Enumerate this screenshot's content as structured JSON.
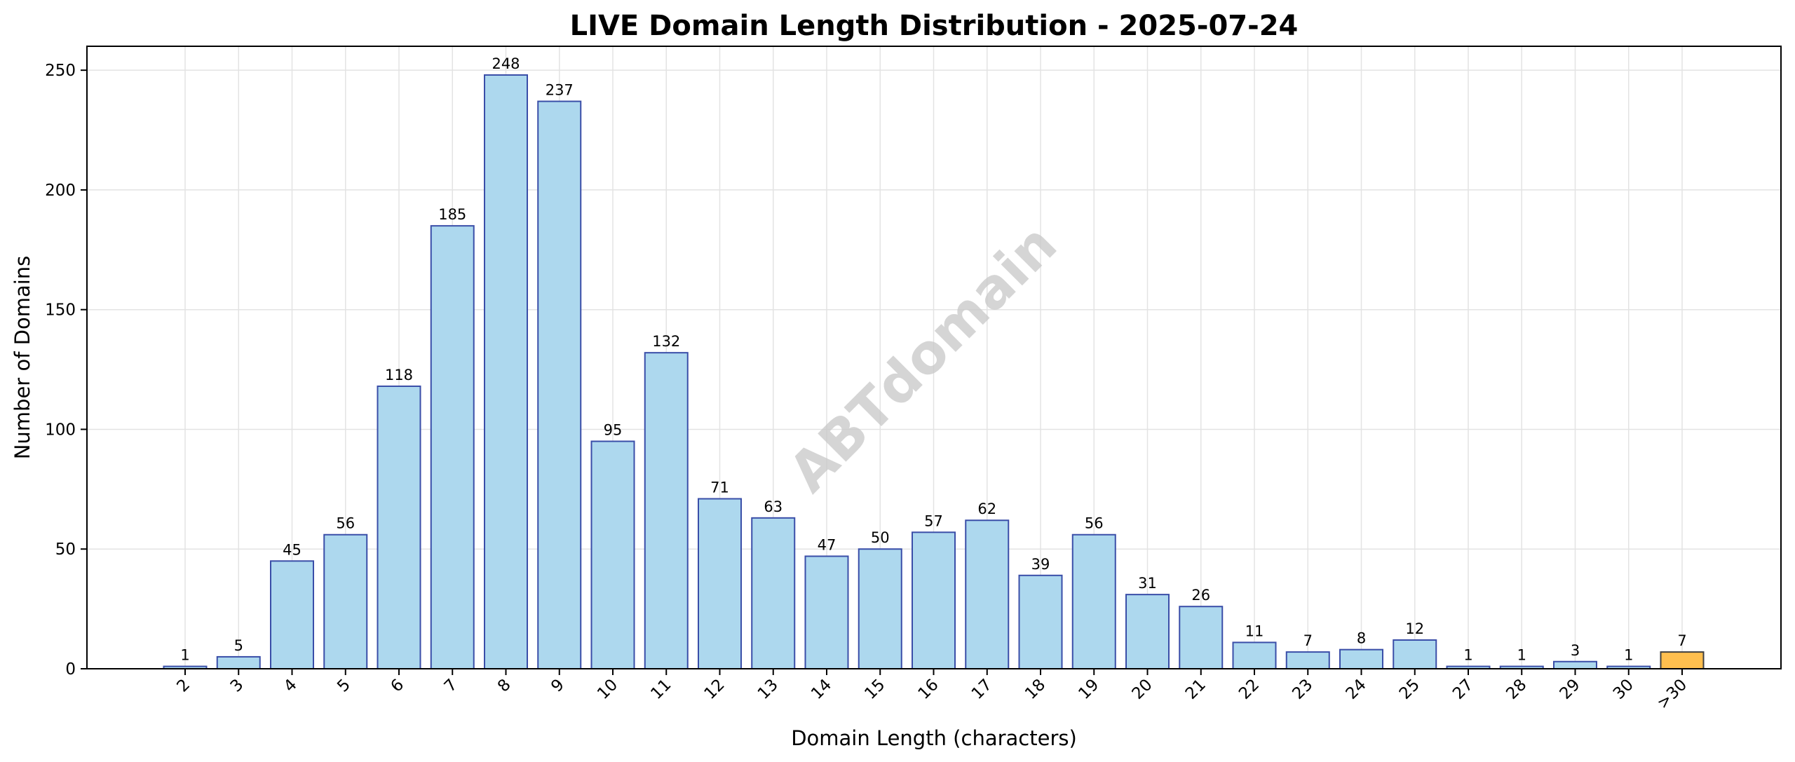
{
  "watermark": "ABTdomain",
  "colors": {
    "bar_fill": "#add8ee",
    "bar_edge": "#3a4ea8",
    "highlight_fill": "#ffbf4f",
    "highlight_edge": "#404040"
  },
  "chart_data": {
    "type": "bar",
    "title": "LIVE Domain Length Distribution - 2025-07-24",
    "xlabel": "Domain Length (characters)",
    "ylabel": "Number of Domains",
    "categories": [
      "2",
      "3",
      "4",
      "5",
      "6",
      "7",
      "8",
      "9",
      "10",
      "11",
      "12",
      "13",
      "14",
      "15",
      "16",
      "17",
      "18",
      "19",
      "20",
      "21",
      "22",
      "23",
      "24",
      "25",
      "27",
      "28",
      "29",
      "30",
      ">30"
    ],
    "values": [
      1,
      5,
      45,
      56,
      118,
      185,
      248,
      237,
      95,
      132,
      71,
      63,
      47,
      50,
      57,
      62,
      39,
      56,
      31,
      26,
      11,
      7,
      8,
      12,
      1,
      1,
      3,
      1,
      7
    ],
    "highlight_categories": [
      ">30"
    ],
    "ylim": [
      0,
      260
    ],
    "yticks": [
      0,
      50,
      100,
      150,
      200,
      250
    ],
    "grid": true,
    "legend": false
  }
}
